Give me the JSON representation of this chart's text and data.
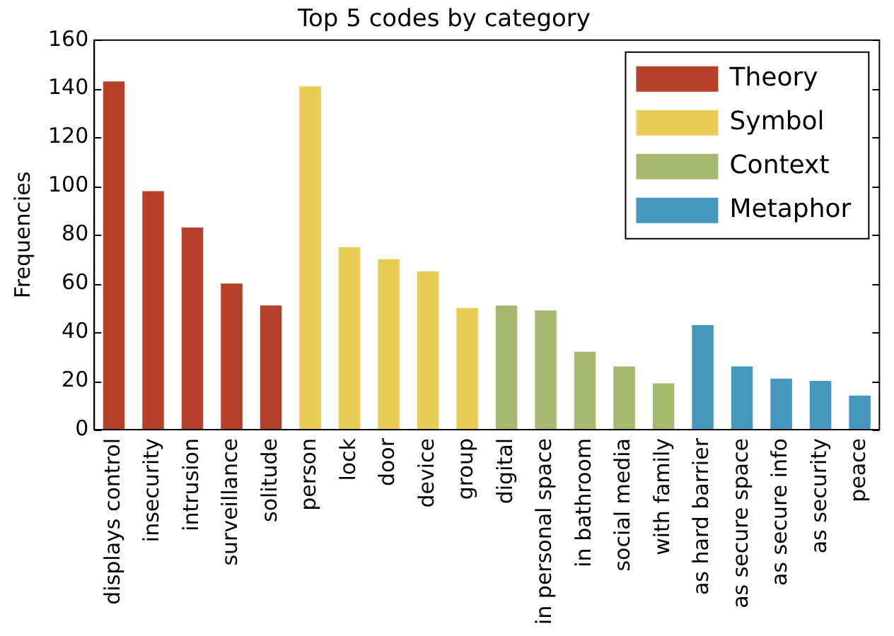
{
  "chart_data": {
    "type": "bar",
    "title": "Top 5 codes by category",
    "ylabel": "Frequencies",
    "categories": [
      "displays control",
      "insecurity",
      "intrusion",
      "surveillance",
      "solitude",
      "person",
      "lock",
      "door",
      "device",
      "group",
      "digital",
      "in personal space",
      "in bathroom",
      "social media",
      "with family",
      "as hard barrier",
      "as secure space",
      "as secure info",
      "as security",
      "peace"
    ],
    "series": [
      {
        "name": "Theory",
        "color": "#b5412a",
        "values": [
          143,
          98,
          83,
          60,
          51,
          null,
          null,
          null,
          null,
          null,
          null,
          null,
          null,
          null,
          null,
          null,
          null,
          null,
          null,
          null
        ]
      },
      {
        "name": "Symbol",
        "color": "#e8cc56",
        "values": [
          null,
          null,
          null,
          null,
          null,
          141,
          75,
          70,
          65,
          50,
          null,
          null,
          null,
          null,
          null,
          null,
          null,
          null,
          null,
          null
        ]
      },
      {
        "name": "Context",
        "color": "#a7b96f",
        "values": [
          null,
          null,
          null,
          null,
          null,
          null,
          null,
          null,
          null,
          null,
          51,
          49,
          32,
          26,
          19,
          null,
          null,
          null,
          null,
          null
        ]
      },
      {
        "name": "Metaphor",
        "color": "#4597bc",
        "values": [
          null,
          null,
          null,
          null,
          null,
          null,
          null,
          null,
          null,
          null,
          null,
          null,
          null,
          null,
          null,
          43,
          26,
          21,
          20,
          14
        ]
      }
    ],
    "ylim": [
      0,
      160
    ],
    "yticks": [
      0,
      20,
      40,
      60,
      80,
      100,
      120,
      140,
      160
    ],
    "grid": false,
    "legend": "top right"
  }
}
